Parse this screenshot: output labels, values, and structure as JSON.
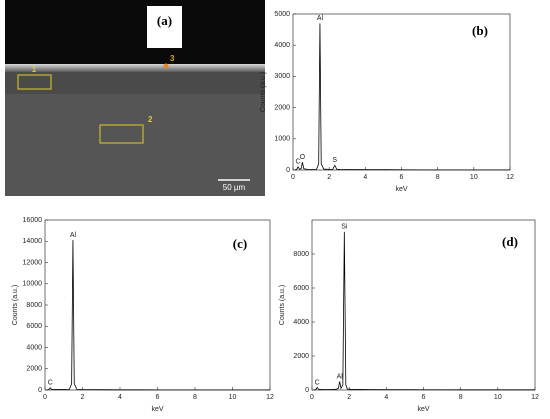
{
  "image": {
    "label": "(a)",
    "markers": [
      "1",
      "2",
      "3"
    ],
    "scale_bar": "50 µm"
  },
  "chart_data": [
    {
      "type": "line",
      "label": "(b)",
      "xlabel": "keV",
      "ylabel": "Counts (a.u.)",
      "color": "#000000",
      "x": [
        0.1,
        0.2,
        0.28,
        0.36,
        0.45,
        0.52,
        0.6,
        0.8,
        1.0,
        1.3,
        1.42,
        1.49,
        1.56,
        1.7,
        2.0,
        2.2,
        2.31,
        2.42,
        2.6,
        3,
        4,
        5,
        6,
        7,
        8,
        9,
        10,
        11,
        12
      ],
      "values": [
        0,
        20,
        100,
        30,
        40,
        250,
        40,
        20,
        15,
        20,
        200,
        4700,
        200,
        30,
        20,
        25,
        150,
        25,
        20,
        15,
        10,
        10,
        8,
        5,
        5,
        5,
        5,
        5,
        5
      ],
      "xlim": [
        0,
        12
      ],
      "xticks": [
        0,
        2,
        4,
        6,
        8,
        10,
        12
      ],
      "ylim": [
        0,
        5000
      ],
      "yticks": [
        0,
        1000,
        2000,
        3000,
        4000,
        5000
      ],
      "annotations": [
        {
          "text": "C",
          "x": 0.28
        },
        {
          "text": "O",
          "x": 0.52
        },
        {
          "text": "Al",
          "x": 1.49
        },
        {
          "text": "S",
          "x": 2.31
        }
      ]
    },
    {
      "type": "line",
      "label": "(c)",
      "xlabel": "keV",
      "ylabel": "Counts (a.u.)",
      "color": "#000000",
      "x": [
        0.1,
        0.2,
        0.28,
        0.36,
        0.6,
        1.0,
        1.3,
        1.42,
        1.49,
        1.56,
        1.7,
        2.0,
        3,
        4,
        5,
        6,
        7,
        8,
        9,
        10,
        11,
        12
      ],
      "values": [
        0,
        40,
        200,
        50,
        40,
        40,
        60,
        600,
        14100,
        600,
        60,
        40,
        30,
        20,
        20,
        15,
        15,
        10,
        10,
        10,
        10,
        10
      ],
      "xlim": [
        0,
        12
      ],
      "xticks": [
        0,
        2,
        4,
        6,
        8,
        10,
        12
      ],
      "ylim": [
        0,
        16000
      ],
      "yticks": [
        0,
        2000,
        4000,
        6000,
        8000,
        10000,
        12000,
        14000,
        16000
      ],
      "annotations": [
        {
          "text": "C",
          "x": 0.28
        },
        {
          "text": "Al",
          "x": 1.49
        }
      ]
    },
    {
      "type": "line",
      "label": "(d)",
      "xlabel": "keV",
      "ylabel": "Counts (a.u.)",
      "color": "#000000",
      "x": [
        0.1,
        0.2,
        0.28,
        0.36,
        0.6,
        1.0,
        1.3,
        1.42,
        1.49,
        1.56,
        1.66,
        1.74,
        1.82,
        1.9,
        2.1,
        3,
        4,
        5,
        6,
        7,
        8,
        9,
        10,
        11,
        12
      ],
      "values": [
        0,
        30,
        150,
        40,
        30,
        30,
        40,
        100,
        500,
        100,
        300,
        9300,
        300,
        60,
        40,
        30,
        20,
        20,
        15,
        15,
        10,
        10,
        10,
        10,
        10
      ],
      "xlim": [
        0,
        12
      ],
      "xticks": [
        0,
        2,
        4,
        6,
        8,
        10,
        12
      ],
      "ylim": [
        0,
        10000
      ],
      "yticks": [
        0,
        2000,
        4000,
        6000,
        8000
      ],
      "annotations": [
        {
          "text": "C",
          "x": 0.28
        },
        {
          "text": "Al",
          "x": 1.49
        },
        {
          "text": "Si",
          "x": 1.74
        }
      ]
    }
  ]
}
